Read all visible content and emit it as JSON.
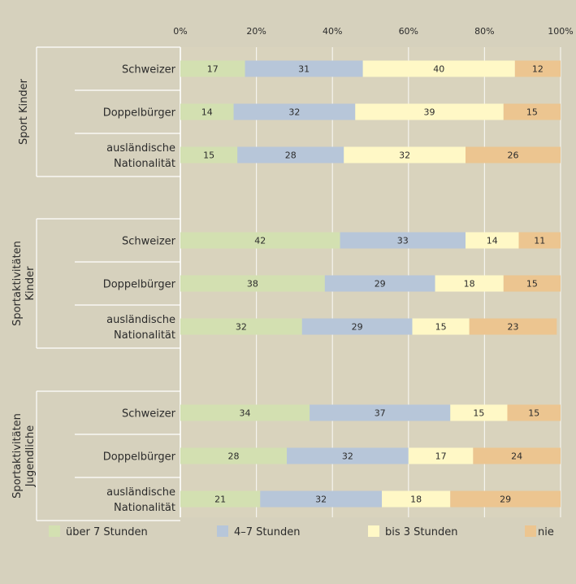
{
  "chart_data": {
    "type": "bar",
    "stacked": true,
    "orientation": "horizontal",
    "x_ticks": [
      "0%",
      "20%",
      "40%",
      "60%",
      "80%",
      "100%"
    ],
    "xlim": [
      0,
      100
    ],
    "grid": true,
    "legend_position": "bottom",
    "series_names": [
      "über 7 Stunden",
      "4–7 Stunden",
      "bis 3 Stunden",
      "nie"
    ],
    "colors": [
      "#d3e0b1",
      "#b7c6d9",
      "#fff8c6",
      "#ecc590"
    ],
    "groups": [
      {
        "name": "Sport Kinder",
        "name_lines": [
          "Sport Kinder"
        ],
        "categories": [
          {
            "label_lines": [
              "Schweizer"
            ],
            "values": [
              17,
              31,
              40,
              12
            ]
          },
          {
            "label_lines": [
              "Doppelbürger"
            ],
            "values": [
              14,
              32,
              39,
              15
            ]
          },
          {
            "label_lines": [
              "ausländische",
              "Nationalität"
            ],
            "values": [
              15,
              28,
              32,
              26
            ]
          }
        ]
      },
      {
        "name": "Sportaktivitäten Kinder",
        "name_lines": [
          "Sportaktivitäten",
          "Kinder"
        ],
        "categories": [
          {
            "label_lines": [
              "Schweizer"
            ],
            "values": [
              42,
              33,
              14,
              11
            ]
          },
          {
            "label_lines": [
              "Doppelbürger"
            ],
            "values": [
              38,
              29,
              18,
              15
            ]
          },
          {
            "label_lines": [
              "ausländische",
              "Nationalität"
            ],
            "values": [
              32,
              29,
              15,
              23
            ]
          }
        ]
      },
      {
        "name": "Sportaktivitäten Jugendliche",
        "name_lines": [
          "Sportaktivitäten",
          "Jugendliche"
        ],
        "categories": [
          {
            "label_lines": [
              "Schweizer"
            ],
            "values": [
              34,
              37,
              15,
              15
            ]
          },
          {
            "label_lines": [
              "Doppelbürger"
            ],
            "values": [
              28,
              32,
              17,
              24
            ]
          },
          {
            "label_lines": [
              "ausländische",
              "Nationalität"
            ],
            "values": [
              21,
              32,
              18,
              29
            ]
          }
        ]
      }
    ]
  }
}
